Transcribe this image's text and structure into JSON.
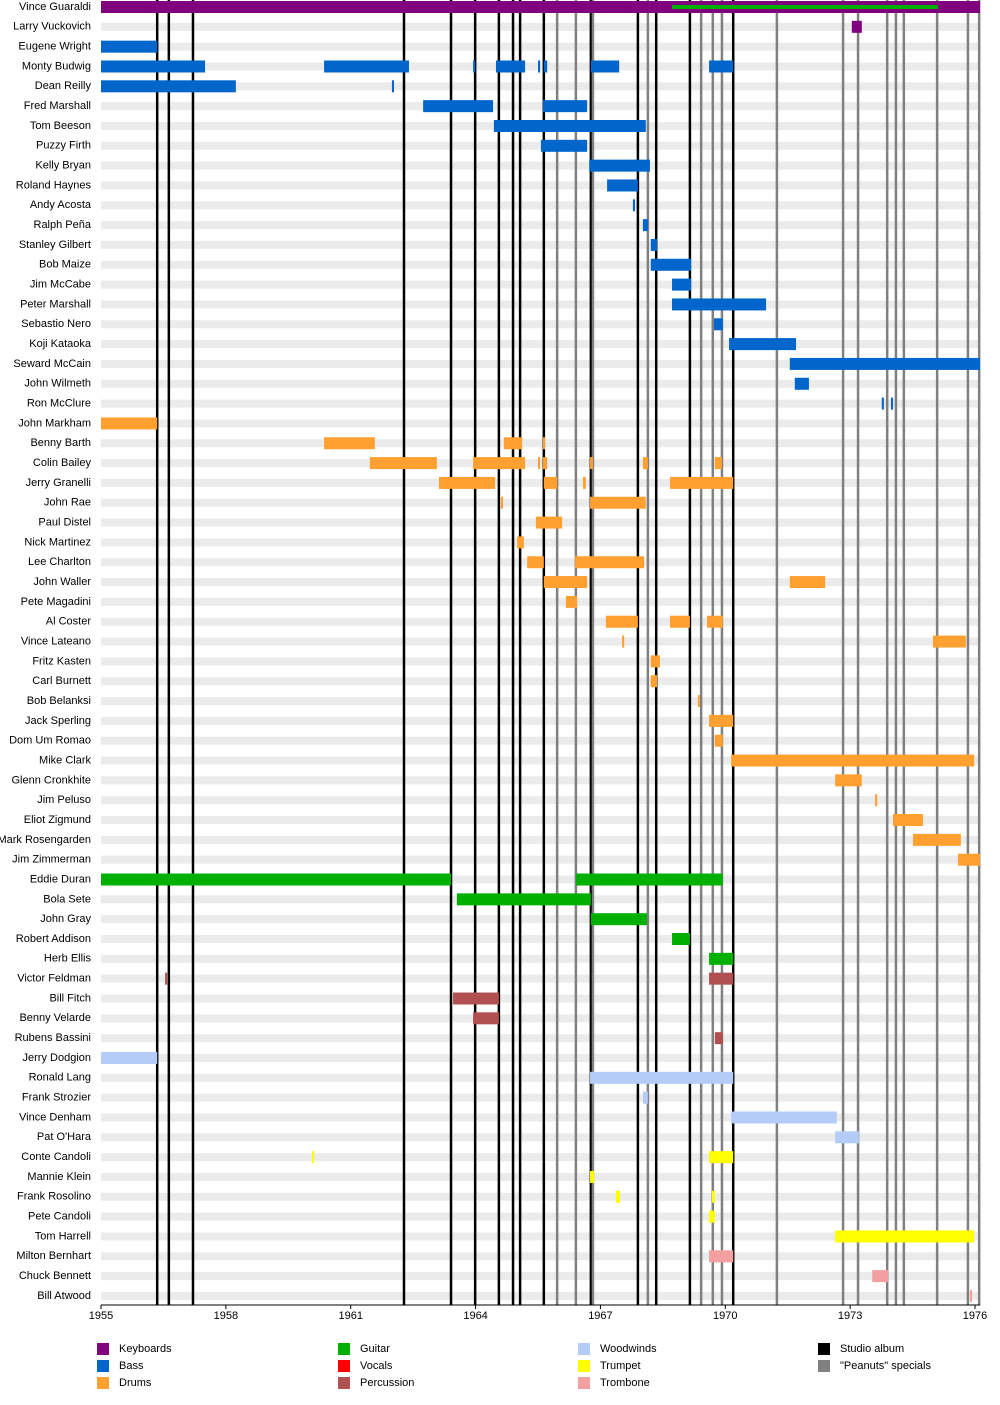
{
  "chart_data": {
    "type": "timeline",
    "xlim": [
      1955,
      1976.12
    ],
    "xticks": [
      1955,
      1958,
      1961,
      1964,
      1967,
      1970,
      1973,
      1976
    ],
    "members": [
      {
        "name": "Vince Guaraldi",
        "bars": [
          {
            "start": 1955,
            "end": 1976.12,
            "color": "#800080"
          },
          {
            "start": 1968.72,
            "end": 1975.11,
            "color": "#00b000",
            "thin": true
          }
        ]
      },
      {
        "name": "Larry Vuckovich",
        "bars": [
          {
            "start": 1973.04,
            "end": 1973.28,
            "color": "#800080"
          }
        ]
      },
      {
        "name": "Eugene Wright",
        "bars": [
          {
            "start": 1955,
            "end": 1956.35,
            "color": "#0066cc"
          }
        ]
      },
      {
        "name": "Monty Budwig",
        "bars": [
          {
            "start": 1955,
            "end": 1957.5,
            "color": "#0066cc"
          },
          {
            "start": 1960.36,
            "end": 1962.4,
            "color": "#0066cc"
          },
          {
            "start": 1963.94,
            "end": 1963.99,
            "color": "#0066cc"
          },
          {
            "start": 1964.49,
            "end": 1965.19,
            "color": "#0066cc"
          },
          {
            "start": 1965.5,
            "end": 1965.55,
            "color": "#0066cc"
          },
          {
            "start": 1965.64,
            "end": 1965.72,
            "color": "#0066cc"
          },
          {
            "start": 1966.77,
            "end": 1967.45,
            "color": "#0066cc"
          },
          {
            "start": 1969.61,
            "end": 1970.19,
            "color": "#0066cc"
          }
        ]
      },
      {
        "name": "Dean Reilly",
        "bars": [
          {
            "start": 1955,
            "end": 1958.24,
            "color": "#0066cc"
          },
          {
            "start": 1961.99,
            "end": 1962.04,
            "color": "#0066cc"
          }
        ]
      },
      {
        "name": "Fred Marshall",
        "bars": [
          {
            "start": 1962.74,
            "end": 1964.42,
            "color": "#0066cc"
          },
          {
            "start": 1965.62,
            "end": 1966.68,
            "color": "#0066cc"
          }
        ]
      },
      {
        "name": "Tom Beeson",
        "bars": [
          {
            "start": 1964.44,
            "end": 1968.09,
            "color": "#0066cc"
          }
        ]
      },
      {
        "name": "Puzzy Firth",
        "bars": [
          {
            "start": 1965.57,
            "end": 1966.68,
            "color": "#0066cc"
          }
        ]
      },
      {
        "name": "Kelly Bryan",
        "bars": [
          {
            "start": 1966.73,
            "end": 1968.19,
            "color": "#0066cc"
          }
        ]
      },
      {
        "name": "Roland Haynes",
        "bars": [
          {
            "start": 1967.16,
            "end": 1967.9,
            "color": "#0066cc"
          }
        ]
      },
      {
        "name": "Andy Acosta",
        "bars": [
          {
            "start": 1967.78,
            "end": 1967.83,
            "color": "#0066cc"
          }
        ]
      },
      {
        "name": "Ralph Peña",
        "bars": [
          {
            "start": 1968.02,
            "end": 1968.14,
            "color": "#0066cc"
          }
        ]
      },
      {
        "name": "Stanley Gilbert",
        "bars": [
          {
            "start": 1968.21,
            "end": 1968.36,
            "color": "#0066cc"
          }
        ]
      },
      {
        "name": "Bob Maize",
        "bars": [
          {
            "start": 1968.21,
            "end": 1969.18,
            "color": "#0066cc"
          }
        ]
      },
      {
        "name": "Jim McCabe",
        "bars": [
          {
            "start": 1968.72,
            "end": 1969.18,
            "color": "#0066cc"
          }
        ]
      },
      {
        "name": "Peter Marshall",
        "bars": [
          {
            "start": 1968.72,
            "end": 1970.98,
            "color": "#0066cc"
          }
        ]
      },
      {
        "name": "Sebastio Nero",
        "bars": [
          {
            "start": 1969.73,
            "end": 1969.94,
            "color": "#0066cc"
          }
        ]
      },
      {
        "name": "Koji Kataoka",
        "bars": [
          {
            "start": 1970.09,
            "end": 1971.7,
            "color": "#0066cc"
          }
        ]
      },
      {
        "name": "Seward McCain",
        "bars": [
          {
            "start": 1971.55,
            "end": 1976.12,
            "color": "#0066cc"
          }
        ]
      },
      {
        "name": "John Wilmeth",
        "bars": [
          {
            "start": 1971.67,
            "end": 1972.01,
            "color": "#0066cc"
          }
        ]
      },
      {
        "name": "Ron McClure",
        "bars": [
          {
            "start": 1973.76,
            "end": 1973.81,
            "color": "#0066cc"
          },
          {
            "start": 1973.98,
            "end": 1974.03,
            "color": "#0066cc"
          }
        ]
      },
      {
        "name": "John Markham",
        "bars": [
          {
            "start": 1955,
            "end": 1956.35,
            "color": "#ffa030"
          }
        ]
      },
      {
        "name": "Benny Barth",
        "bars": [
          {
            "start": 1960.36,
            "end": 1961.58,
            "color": "#ffa030"
          },
          {
            "start": 1964.68,
            "end": 1965.12,
            "color": "#ffa030"
          },
          {
            "start": 1965.62,
            "end": 1965.67,
            "color": "#ffa030"
          }
        ]
      },
      {
        "name": "Colin Bailey",
        "bars": [
          {
            "start": 1961.46,
            "end": 1963.07,
            "color": "#ffa030"
          },
          {
            "start": 1963.94,
            "end": 1965.19,
            "color": "#ffa030"
          },
          {
            "start": 1965.5,
            "end": 1965.55,
            "color": "#ffa030"
          },
          {
            "start": 1965.62,
            "end": 1965.72,
            "color": "#ffa030"
          },
          {
            "start": 1966.75,
            "end": 1966.82,
            "color": "#ffa030"
          },
          {
            "start": 1968.02,
            "end": 1968.14,
            "color": "#ffa030"
          },
          {
            "start": 1969.75,
            "end": 1969.92,
            "color": "#ffa030"
          }
        ]
      },
      {
        "name": "Jerry Granelli",
        "bars": [
          {
            "start": 1963.12,
            "end": 1964.47,
            "color": "#ffa030"
          },
          {
            "start": 1965.64,
            "end": 1965.96,
            "color": "#ffa030"
          },
          {
            "start": 1966.58,
            "end": 1966.65,
            "color": "#ffa030"
          },
          {
            "start": 1968.67,
            "end": 1970.19,
            "color": "#ffa030"
          }
        ]
      },
      {
        "name": "John Rae",
        "bars": [
          {
            "start": 1964.61,
            "end": 1964.66,
            "color": "#ffa030"
          },
          {
            "start": 1966.75,
            "end": 1968.09,
            "color": "#ffa030"
          }
        ]
      },
      {
        "name": "Paul Distel",
        "bars": [
          {
            "start": 1965.45,
            "end": 1966.08,
            "color": "#ffa030"
          }
        ]
      },
      {
        "name": "Nick Martinez",
        "bars": [
          {
            "start": 1965.0,
            "end": 1965.16,
            "color": "#ffa030"
          }
        ]
      },
      {
        "name": "Lee Charlton",
        "bars": [
          {
            "start": 1965.24,
            "end": 1965.64,
            "color": "#ffa030"
          },
          {
            "start": 1966.39,
            "end": 1968.05,
            "color": "#ffa030"
          }
        ]
      },
      {
        "name": "John Waller",
        "bars": [
          {
            "start": 1965.64,
            "end": 1966.68,
            "color": "#ffa030"
          },
          {
            "start": 1971.55,
            "end": 1972.4,
            "color": "#ffa030"
          }
        ]
      },
      {
        "name": "Pete Magadini",
        "bars": [
          {
            "start": 1966.17,
            "end": 1966.44,
            "color": "#ffa030"
          }
        ]
      },
      {
        "name": "Al Coster",
        "bars": [
          {
            "start": 1967.13,
            "end": 1967.9,
            "color": "#ffa030"
          },
          {
            "start": 1968.67,
            "end": 1969.15,
            "color": "#ffa030"
          },
          {
            "start": 1969.56,
            "end": 1969.94,
            "color": "#ffa030"
          }
        ]
      },
      {
        "name": "Vince Lateano",
        "bars": [
          {
            "start": 1967.52,
            "end": 1967.57,
            "color": "#ffa030"
          },
          {
            "start": 1974.99,
            "end": 1975.78,
            "color": "#ffa030"
          }
        ]
      },
      {
        "name": "Fritz Kasten",
        "bars": [
          {
            "start": 1968.21,
            "end": 1968.43,
            "color": "#ffa030"
          }
        ]
      },
      {
        "name": "Carl Burnett",
        "bars": [
          {
            "start": 1968.21,
            "end": 1968.36,
            "color": "#ffa030"
          }
        ]
      },
      {
        "name": "Bob Belanksi",
        "bars": [
          {
            "start": 1969.34,
            "end": 1969.39,
            "color": "#ffa030"
          }
        ]
      },
      {
        "name": "Jack Sperling",
        "bars": [
          {
            "start": 1969.61,
            "end": 1970.19,
            "color": "#ffa030"
          }
        ]
      },
      {
        "name": "Dom Um Romao",
        "bars": [
          {
            "start": 1969.75,
            "end": 1969.94,
            "color": "#ffa030"
          }
        ]
      },
      {
        "name": "Mike Clark",
        "bars": [
          {
            "start": 1970.14,
            "end": 1975.98,
            "color": "#ffa030"
          }
        ]
      },
      {
        "name": "Glenn Cronkhite",
        "bars": [
          {
            "start": 1972.64,
            "end": 1973.28,
            "color": "#ffa030"
          }
        ]
      },
      {
        "name": "Jim Peluso",
        "bars": [
          {
            "start": 1973.6,
            "end": 1973.65,
            "color": "#ffa030"
          }
        ]
      },
      {
        "name": "Eliot Zigmund",
        "bars": [
          {
            "start": 1974.03,
            "end": 1974.75,
            "color": "#ffa030"
          }
        ]
      },
      {
        "name": "Mark Rosengarden",
        "bars": [
          {
            "start": 1974.51,
            "end": 1975.66,
            "color": "#ffa030"
          }
        ]
      },
      {
        "name": "Jim Zimmerman",
        "bars": [
          {
            "start": 1975.59,
            "end": 1976.12,
            "color": "#ffa030"
          }
        ]
      },
      {
        "name": "Eddie Duran",
        "bars": [
          {
            "start": 1955,
            "end": 1963.41,
            "color": "#00b000"
          },
          {
            "start": 1966.41,
            "end": 1969.94,
            "color": "#00b000"
          }
        ]
      },
      {
        "name": "Bola Sete",
        "bars": [
          {
            "start": 1963.55,
            "end": 1966.77,
            "color": "#00b000"
          }
        ]
      },
      {
        "name": "John Gray",
        "bars": [
          {
            "start": 1966.77,
            "end": 1968.12,
            "color": "#00b000"
          }
        ]
      },
      {
        "name": "Robert Addison",
        "bars": [
          {
            "start": 1968.72,
            "end": 1969.15,
            "color": "#00b000"
          }
        ]
      },
      {
        "name": "Herb Ellis",
        "bars": [
          {
            "start": 1969.61,
            "end": 1970.19,
            "color": "#00b000"
          }
        ]
      },
      {
        "name": "Victor Feldman",
        "bars": [
          {
            "start": 1956.54,
            "end": 1956.59,
            "color": "#b05050"
          },
          {
            "start": 1969.61,
            "end": 1970.19,
            "color": "#b05050"
          }
        ]
      },
      {
        "name": "Bill Fitch",
        "bars": [
          {
            "start": 1963.46,
            "end": 1964.56,
            "color": "#b05050"
          }
        ]
      },
      {
        "name": "Benny Velarde",
        "bars": [
          {
            "start": 1963.94,
            "end": 1964.56,
            "color": "#b05050"
          }
        ]
      },
      {
        "name": "Rubens Bassini",
        "bars": [
          {
            "start": 1969.75,
            "end": 1969.94,
            "color": "#b05050"
          }
        ]
      },
      {
        "name": "Jerry Dodgion",
        "bars": [
          {
            "start": 1955,
            "end": 1956.35,
            "color": "#b4ccf8"
          }
        ]
      },
      {
        "name": "Ronald Lang",
        "bars": [
          {
            "start": 1966.75,
            "end": 1970.19,
            "color": "#b4ccf8"
          }
        ]
      },
      {
        "name": "Frank Strozier",
        "bars": [
          {
            "start": 1968.02,
            "end": 1968.14,
            "color": "#b4ccf8"
          }
        ]
      },
      {
        "name": "Vince Denham",
        "bars": [
          {
            "start": 1970.14,
            "end": 1972.68,
            "color": "#b4ccf8"
          }
        ]
      },
      {
        "name": "Pat O'Hara",
        "bars": [
          {
            "start": 1972.64,
            "end": 1973.21,
            "color": "#b4ccf8"
          }
        ]
      },
      {
        "name": "Conte Candoli",
        "bars": [
          {
            "start": 1960.07,
            "end": 1960.12,
            "color": "#ffff00"
          },
          {
            "start": 1969.61,
            "end": 1970.19,
            "color": "#ffff00"
          }
        ]
      },
      {
        "name": "Mannie Klein",
        "bars": [
          {
            "start": 1966.75,
            "end": 1966.85,
            "color": "#ffff00"
          }
        ]
      },
      {
        "name": "Frank Rosolino",
        "bars": [
          {
            "start": 1967.37,
            "end": 1967.47,
            "color": "#ffff00"
          },
          {
            "start": 1969.68,
            "end": 1969.75,
            "color": "#ffff00"
          }
        ]
      },
      {
        "name": "Pete Candoli",
        "bars": [
          {
            "start": 1969.61,
            "end": 1969.75,
            "color": "#ffff00"
          }
        ]
      },
      {
        "name": "Tom Harrell",
        "bars": [
          {
            "start": 1972.64,
            "end": 1975.98,
            "color": "#ffff00"
          }
        ]
      },
      {
        "name": "Milton Bernhart",
        "bars": [
          {
            "start": 1969.61,
            "end": 1970.19,
            "color": "#f4a0a0"
          }
        ]
      },
      {
        "name": "Chuck Bennett",
        "bars": [
          {
            "start": 1973.53,
            "end": 1973.91,
            "color": "#f4a0a0"
          }
        ]
      },
      {
        "name": "Bill Atwood",
        "bars": [
          {
            "start": 1975.88,
            "end": 1975.93,
            "color": "#f4a0a0"
          }
        ]
      }
    ],
    "event_lines": [
      {
        "name": "Studio album",
        "color": "#000000",
        "x": [
          1956.35,
          1956.63,
          1957.21,
          1962.28,
          1963.41,
          1963.99,
          1964.56,
          1964.9,
          1965.07,
          1965.64,
          1966.77,
          1967.9,
          1968.34,
          1969.15,
          1970.19
        ]
      },
      {
        "name": "\"Peanuts\" specials",
        "color": "#808080",
        "x": [
          1965.96,
          1966.41,
          1966.82,
          1968.14,
          1969.42,
          1969.7,
          1969.92,
          1971.24,
          1972.83,
          1973.19,
          1973.89,
          1974.1,
          1974.29,
          1975.09,
          1975.83,
          1976.1
        ]
      }
    ],
    "legend": [
      {
        "name": "Keyboards",
        "color": "#800080"
      },
      {
        "name": "Bass",
        "color": "#0066cc"
      },
      {
        "name": "Drums",
        "color": "#ffa030"
      },
      {
        "name": "Guitar",
        "color": "#00b000"
      },
      {
        "name": "Vocals",
        "color": "#ff0000"
      },
      {
        "name": "Percussion",
        "color": "#b05050"
      },
      {
        "name": "Woodwinds",
        "color": "#b4ccf8"
      },
      {
        "name": "Trumpet",
        "color": "#ffff00"
      },
      {
        "name": "Trombone",
        "color": "#f4a0a0"
      }
    ]
  }
}
